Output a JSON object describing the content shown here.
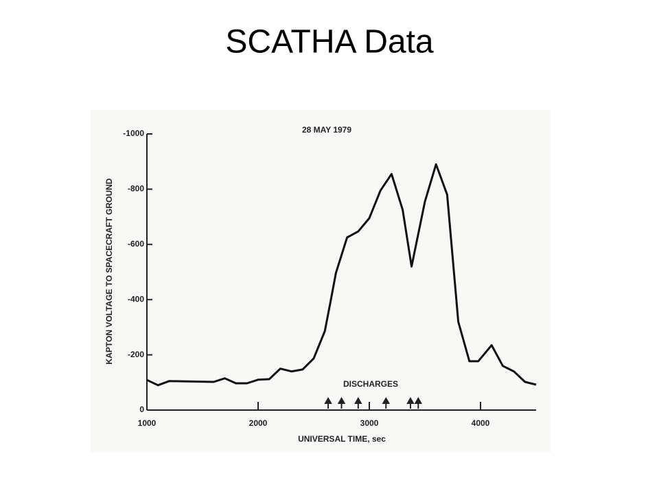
{
  "slide_title": "SCATHA Data",
  "chart_data": {
    "type": "line",
    "title": "28 MAY 1979",
    "x_label": "UNIVERSAL TIME, sec",
    "y_label": "KAPTON VOLTAGE TO SPACECRAFT GROUND",
    "annotation": "DISCHARGES",
    "discharges": [
      2630,
      2750,
      2900,
      3150,
      3370,
      3440
    ],
    "x": [
      1000,
      1100,
      1200,
      1600,
      1700,
      1800,
      1900,
      2000,
      2100,
      2200,
      2300,
      2400,
      2500,
      2600,
      2650,
      2700,
      2800,
      2900,
      3000,
      3100,
      3200,
      3300,
      3380,
      3500,
      3600,
      3700,
      3800,
      3900,
      3980,
      4100,
      4200,
      4300,
      4400,
      4500
    ],
    "values": [
      -109,
      -90,
      -105,
      -102,
      -115,
      -97,
      -97,
      -110,
      -112,
      -150,
      -140,
      -147,
      -187,
      -286,
      -390,
      -497,
      -625,
      -647,
      -695,
      -795,
      -855,
      -725,
      -520,
      -755,
      -890,
      -780,
      -320,
      -177,
      -177,
      -235,
      -160,
      -140,
      -102,
      -92
    ],
    "color": "#111111",
    "xlim": [
      1000,
      4500
    ],
    "xticks": [
      1000,
      2000,
      3000,
      4000
    ],
    "ylim": [
      0,
      -1000
    ],
    "yticks": [
      -1000,
      -800,
      -600,
      -400,
      -200,
      0
    ]
  }
}
